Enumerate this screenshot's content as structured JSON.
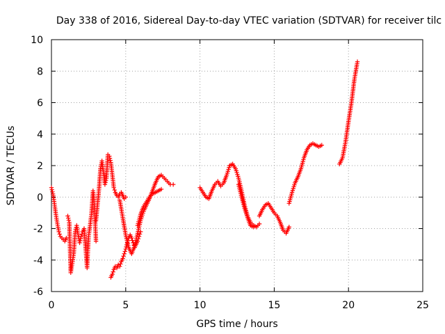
{
  "chart_data": {
    "type": "scatter",
    "title": "Day 338 of 2016, Sidereal Day-to-day VTEC variation (SDTVAR) for receiver tilc",
    "xlabel": "GPS time / hours",
    "ylabel": "SDTVAR / TECUs",
    "xlim": [
      0,
      25
    ],
    "ylim": [
      -6,
      10
    ],
    "xticks": [
      "0",
      "5",
      "10",
      "15",
      "20",
      "25"
    ],
    "yticks": [
      "-6",
      "-4",
      "-2",
      "0",
      "2",
      "4",
      "6",
      "8",
      "10"
    ],
    "grid": true,
    "marker": "plus",
    "color": "#ff0000",
    "series": [
      {
        "x": [
          0.0,
          0.1,
          0.2,
          0.3,
          0.4,
          0.5,
          0.6,
          0.7,
          0.8,
          0.9,
          1.0
        ],
        "y": [
          0.6,
          0.2,
          -0.4,
          -1.1,
          -1.7,
          -2.2,
          -2.5,
          -2.6,
          -2.7,
          -2.8,
          -2.6
        ]
      },
      {
        "x": [
          1.1,
          1.2,
          1.3,
          1.4,
          1.5,
          1.6,
          1.7,
          1.8,
          1.9,
          2.0,
          2.1,
          2.2,
          2.3,
          2.4,
          2.5,
          2.6,
          2.7,
          2.8,
          2.9,
          3.0
        ],
        "y": [
          -1.2,
          -1.6,
          -4.8,
          -4.2,
          -3.6,
          -2.2,
          -1.8,
          -2.4,
          -2.9,
          -2.5,
          -2.2,
          -2.0,
          -3.2,
          -4.5,
          -2.5,
          -1.8,
          -1.0,
          0.4,
          -0.6,
          -2.8
        ]
      },
      {
        "x": [
          3.0,
          3.1,
          3.2,
          3.3,
          3.4,
          3.5,
          3.6,
          3.7,
          3.8,
          3.9,
          4.0,
          4.1,
          4.2,
          4.3,
          4.4,
          4.5,
          4.6,
          4.7,
          4.8,
          4.9,
          5.0
        ],
        "y": [
          -1.5,
          -0.5,
          0.5,
          1.8,
          2.3,
          1.6,
          0.8,
          1.2,
          2.7,
          2.6,
          2.2,
          1.4,
          0.6,
          0.3,
          0.1,
          0.0,
          0.2,
          0.3,
          0.1,
          -0.1,
          0.0
        ]
      },
      {
        "x": [
          4.0,
          4.1,
          4.2,
          4.3,
          4.4,
          4.5,
          4.6,
          4.7,
          4.8,
          4.9,
          5.0,
          5.1,
          5.2,
          5.3,
          5.4,
          5.5,
          5.6,
          5.7,
          5.8,
          5.9,
          6.0
        ],
        "y": [
          -5.1,
          -4.9,
          -4.6,
          -4.4,
          -4.5,
          -4.3,
          -4.4,
          -4.1,
          -3.9,
          -3.6,
          -3.3,
          -2.9,
          -2.6,
          -2.4,
          -2.6,
          -2.9,
          -3.2,
          -3.0,
          -2.8,
          -2.5,
          -2.2
        ]
      },
      {
        "x": [
          4.6,
          4.8,
          5.0,
          5.2,
          5.4,
          5.6,
          5.8,
          6.0,
          6.2,
          6.4,
          6.6,
          6.8,
          7.0,
          7.2,
          7.4,
          7.6,
          7.8,
          8.0,
          8.2
        ],
        "y": [
          -0.2,
          -1.3,
          -2.4,
          -3.2,
          -3.6,
          -3.1,
          -2.3,
          -1.5,
          -0.9,
          -0.5,
          -0.1,
          0.4,
          0.9,
          1.3,
          1.4,
          1.2,
          1.0,
          0.8,
          0.8
        ]
      },
      {
        "x": [
          5.8,
          6.0,
          6.2,
          6.4,
          6.6,
          6.8,
          7.0,
          7.2,
          7.4
        ],
        "y": [
          -1.8,
          -1.1,
          -0.6,
          -0.3,
          0.0,
          0.2,
          0.3,
          0.4,
          0.5
        ]
      },
      {
        "x": [
          10.0,
          10.2,
          10.4,
          10.6,
          10.8,
          11.0,
          11.2,
          11.4,
          11.6,
          11.8,
          12.0,
          12.2,
          12.4,
          12.6,
          12.8,
          13.0,
          13.2,
          13.4,
          13.6,
          13.8,
          14.0
        ],
        "y": [
          0.6,
          0.3,
          0.0,
          -0.1,
          0.4,
          0.8,
          1.0,
          0.7,
          0.9,
          1.4,
          2.0,
          2.1,
          1.8,
          1.2,
          0.4,
          -0.5,
          -1.2,
          -1.6,
          -1.8,
          -1.9,
          -1.7
        ]
      },
      {
        "x": [
          12.6,
          12.8,
          13.0,
          13.2,
          13.4,
          13.6
        ],
        "y": [
          0.8,
          0.0,
          -0.7,
          -1.3,
          -1.8,
          -1.9
        ]
      },
      {
        "x": [
          14.0,
          14.2,
          14.4,
          14.6,
          14.8,
          15.0,
          15.2,
          15.4,
          15.6,
          15.8,
          16.0
        ],
        "y": [
          -1.2,
          -0.8,
          -0.5,
          -0.4,
          -0.7,
          -1.0,
          -1.2,
          -1.6,
          -2.1,
          -2.3,
          -1.9
        ]
      },
      {
        "x": [
          16.0,
          16.2,
          16.4,
          16.6,
          16.8,
          17.0,
          17.2,
          17.4,
          17.6,
          17.8,
          18.0,
          18.2
        ],
        "y": [
          -0.4,
          0.3,
          0.9,
          1.3,
          1.8,
          2.5,
          3.0,
          3.3,
          3.4,
          3.3,
          3.2,
          3.3
        ]
      },
      {
        "x": [
          19.4,
          19.6,
          19.8,
          20.0,
          20.2,
          20.4,
          20.6
        ],
        "y": [
          2.1,
          2.5,
          3.5,
          4.8,
          6.0,
          7.5,
          8.6
        ]
      }
    ]
  }
}
